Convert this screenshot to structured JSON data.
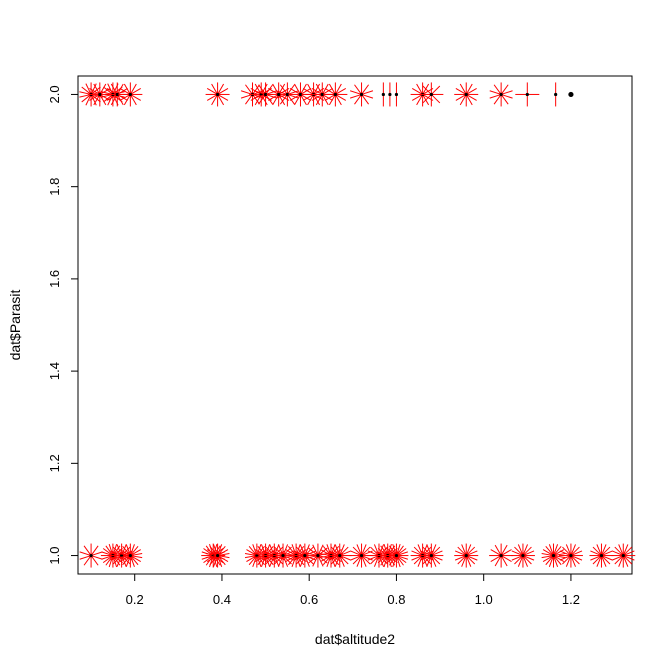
{
  "chart_data": {
    "type": "scatter",
    "title": "",
    "xlabel": "dat$altitude2",
    "ylabel": "dat$Parasit",
    "xlim": [
      0.07,
      1.34
    ],
    "ylim": [
      0.96,
      2.04
    ],
    "xticks": [
      0.2,
      0.4,
      0.6,
      0.8,
      1.0,
      1.2
    ],
    "xtick_labels": [
      "0.2",
      "0.4",
      "0.6",
      "0.8",
      "1.0",
      "1.2"
    ],
    "yticks": [
      1.0,
      1.2,
      1.4,
      1.6,
      1.8,
      2.0
    ],
    "ytick_labels": [
      "1.0",
      "1.2",
      "1.4",
      "1.6",
      "1.8",
      "2.0"
    ],
    "grid": false,
    "marker": "sunflower",
    "colors": {
      "rays": "#ff0000",
      "points": "#000000"
    },
    "series": [
      {
        "y": 2.0,
        "points": [
          {
            "x": 0.1,
            "rays": 14
          },
          {
            "x": 0.12,
            "rays": 12
          },
          {
            "x": 0.15,
            "rays": 14
          },
          {
            "x": 0.16,
            "rays": 12
          },
          {
            "x": 0.19,
            "rays": 12
          },
          {
            "x": 0.39,
            "rays": 12
          },
          {
            "x": 0.47,
            "rays": 10
          },
          {
            "x": 0.49,
            "rays": 12
          },
          {
            "x": 0.5,
            "rays": 10
          },
          {
            "x": 0.53,
            "rays": 12
          },
          {
            "x": 0.55,
            "rays": 10
          },
          {
            "x": 0.58,
            "rays": 12
          },
          {
            "x": 0.61,
            "rays": 12
          },
          {
            "x": 0.63,
            "rays": 12
          },
          {
            "x": 0.66,
            "rays": 12
          },
          {
            "x": 0.72,
            "rays": 10
          },
          {
            "x": 0.77,
            "rays": 2
          },
          {
            "x": 0.785,
            "rays": 2
          },
          {
            "x": 0.8,
            "rays": 2
          },
          {
            "x": 0.86,
            "rays": 12
          },
          {
            "x": 0.88,
            "rays": 8
          },
          {
            "x": 0.96,
            "rays": 12
          },
          {
            "x": 1.04,
            "rays": 10
          },
          {
            "x": 1.1,
            "rays": 4
          },
          {
            "x": 1.165,
            "rays": 2
          },
          {
            "x": 1.2,
            "rays": 1
          }
        ]
      },
      {
        "y": 1.0,
        "points": [
          {
            "x": 0.1,
            "rays": 10
          },
          {
            "x": 0.15,
            "rays": 20
          },
          {
            "x": 0.17,
            "rays": 16
          },
          {
            "x": 0.19,
            "rays": 18
          },
          {
            "x": 0.38,
            "rays": 20
          },
          {
            "x": 0.39,
            "rays": 18
          },
          {
            "x": 0.48,
            "rays": 18
          },
          {
            "x": 0.5,
            "rays": 18
          },
          {
            "x": 0.52,
            "rays": 16
          },
          {
            "x": 0.54,
            "rays": 16
          },
          {
            "x": 0.57,
            "rays": 18
          },
          {
            "x": 0.59,
            "rays": 16
          },
          {
            "x": 0.62,
            "rays": 14
          },
          {
            "x": 0.65,
            "rays": 18
          },
          {
            "x": 0.67,
            "rays": 16
          },
          {
            "x": 0.72,
            "rays": 16
          },
          {
            "x": 0.76,
            "rays": 16
          },
          {
            "x": 0.78,
            "rays": 20
          },
          {
            "x": 0.8,
            "rays": 20
          },
          {
            "x": 0.86,
            "rays": 16
          },
          {
            "x": 0.88,
            "rays": 16
          },
          {
            "x": 0.96,
            "rays": 16
          },
          {
            "x": 1.04,
            "rays": 12
          },
          {
            "x": 1.09,
            "rays": 16
          },
          {
            "x": 1.16,
            "rays": 18
          },
          {
            "x": 1.2,
            "rays": 16
          },
          {
            "x": 1.27,
            "rays": 16
          },
          {
            "x": 1.32,
            "rays": 16
          }
        ]
      }
    ]
  }
}
